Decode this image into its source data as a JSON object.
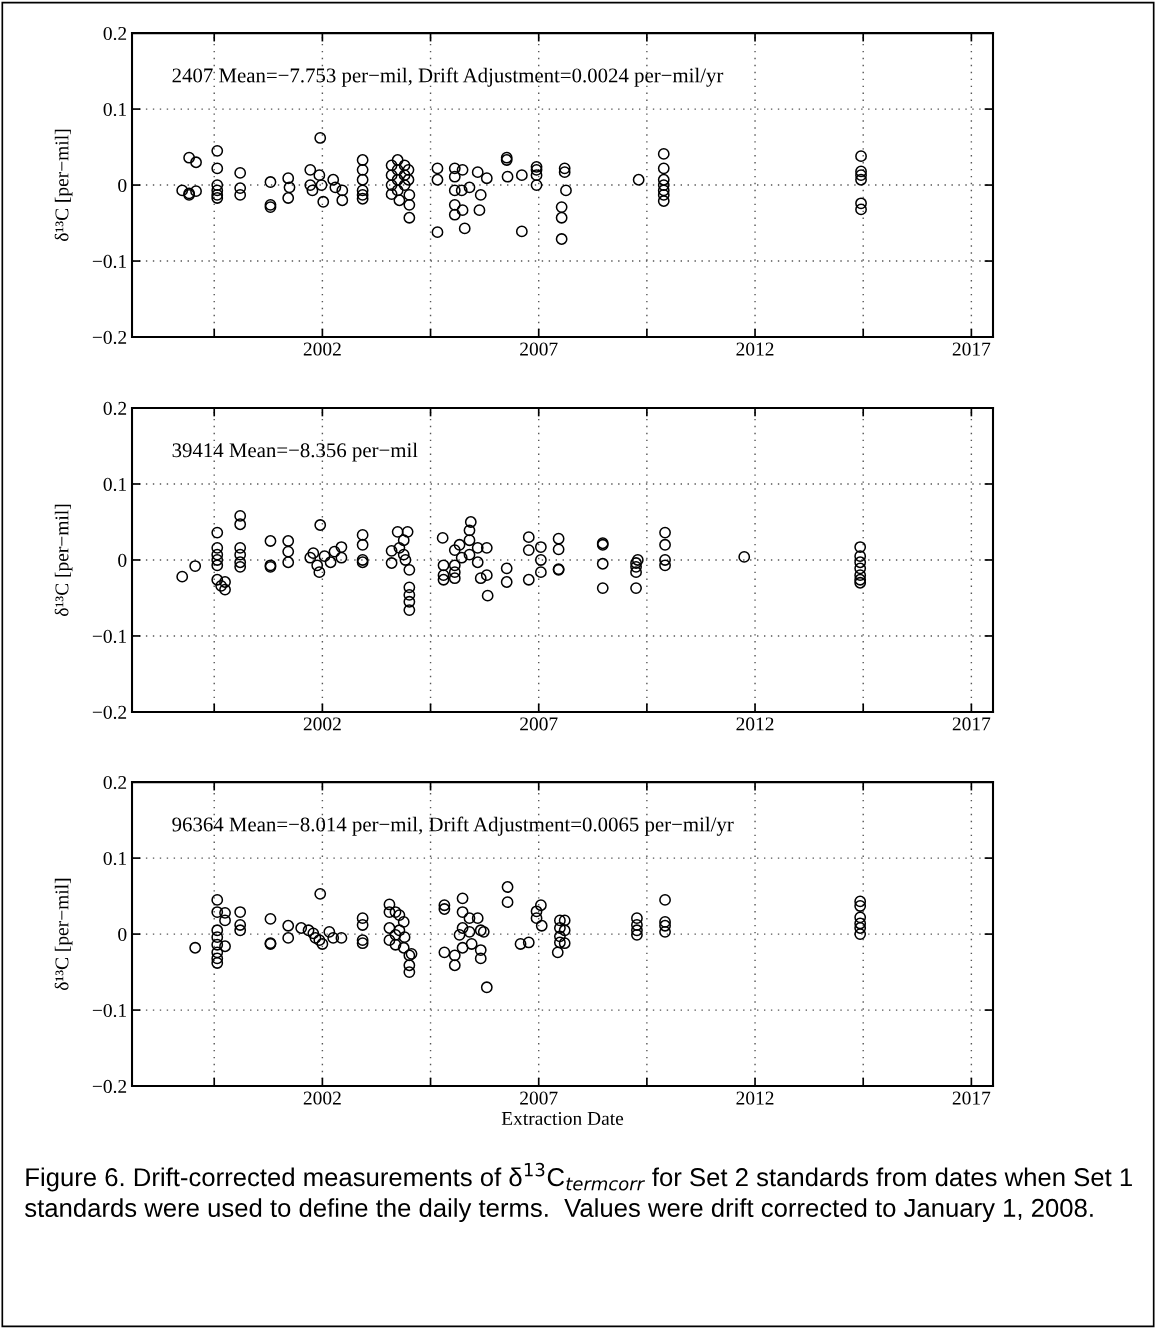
{
  "chart_data": [
    {
      "type": "scatter",
      "ylabel": "δ¹³C [per−mil]",
      "annotations": [
        "2407 Mean=−7.753 per−mil, Drift Adjustment=0.0024 per−mil/yr"
      ],
      "color": "#000000",
      "marker": "circle",
      "grid": true,
      "xlim": [
        1997.6,
        2017.5
      ],
      "ylim": [
        -0.2,
        0.2
      ],
      "xticks": [
        {
          "value": 1999.5,
          "label": null
        },
        2002,
        {
          "value": 2004.5,
          "label": null
        },
        2007,
        {
          "value": 2009.5,
          "label": null
        },
        2012,
        {
          "value": 2014.5,
          "label": null
        },
        2017
      ],
      "yticks": [
        -0.2,
        -0.1,
        0,
        0.1,
        0.2
      ],
      "x": [
        1998.76,
        1998.92,
        1999.08,
        1998.92,
        1999.08,
        1998.92,
        1999.57,
        1999.57,
        1999.57,
        1999.57,
        1999.57,
        1999.57,
        2000.1,
        2000.1,
        2000.1,
        2000.8,
        2000.8,
        2000.8,
        2001.21,
        2001.21,
        2001.24,
        2001.72,
        2001.72,
        2001.77,
        2001.95,
        2001.93,
        2001.98,
        2002.02,
        2002.25,
        2002.3,
        2002.46,
        2002.46,
        2002.93,
        2002.93,
        2002.93,
        2002.93,
        2002.93,
        2002.93,
        2003.6,
        2003.6,
        2003.6,
        2003.6,
        2003.74,
        2003.74,
        2003.74,
        2003.74,
        2003.78,
        2003.9,
        2003.9,
        2003.9,
        2003.99,
        2003.99,
        2004.01,
        2004.01,
        2004.01,
        2004.66,
        2004.66,
        2004.66,
        2005.06,
        2005.06,
        2005.06,
        2005.06,
        2005.06,
        2005.24,
        2005.22,
        2005.24,
        2005.29,
        2005.4,
        2005.59,
        2005.66,
        2005.8,
        2005.63,
        2006.26,
        2006.26,
        2006.28,
        2006.61,
        2006.61,
        2006.95,
        2006.95,
        2006.95,
        2006.95,
        2007.6,
        2007.6,
        2007.63,
        2007.53,
        2007.53,
        2007.53,
        2009.31,
        2009.89,
        2009.89,
        2009.89,
        2009.89,
        2009.89,
        2009.89,
        2009.89,
        2014.45,
        2014.45,
        2014.45,
        2014.45,
        2014.45,
        2014.45
      ],
      "values": [
        -0.007,
        0.036,
        0.03,
        -0.011,
        -0.008,
        -0.013,
        0.045,
        0.022,
        0,
        -0.007,
        -0.013,
        -0.017,
        0.016,
        -0.004,
        -0.013,
        0.004,
        -0.026,
        -0.029,
        0.009,
        -0.017,
        -0.003,
        0.02,
        0,
        -0.007,
        0.062,
        0.013,
        0,
        -0.022,
        0.007,
        -0.003,
        -0.007,
        -0.02,
        0.033,
        0.02,
        0.007,
        -0.007,
        -0.013,
        -0.018,
        0.026,
        0.013,
        0,
        -0.012,
        0.033,
        0.02,
        0.007,
        -0.007,
        -0.02,
        0.026,
        0.013,
        0,
        0.02,
        0.007,
        -0.013,
        -0.026,
        -0.043,
        0.022,
        0.007,
        -0.062,
        0.022,
        0.011,
        -0.007,
        -0.026,
        -0.039,
        0.02,
        -0.007,
        -0.033,
        -0.057,
        -0.003,
        0.017,
        -0.013,
        0.009,
        -0.033,
        0.036,
        0.033,
        0.011,
        0.013,
        -0.061,
        0.024,
        0.02,
        0.013,
        0,
        0.022,
        0.017,
        -0.007,
        -0.029,
        -0.043,
        -0.071,
        0.007,
        0.041,
        0.022,
        0.007,
        0,
        -0.007,
        -0.013,
        -0.021,
        0.038,
        0.018,
        0.013,
        0.007,
        -0.024,
        -0.032
      ]
    },
    {
      "type": "scatter",
      "ylabel": "δ¹³C [per−mil]",
      "annotations": [
        "39414 Mean=−8.356 per−mil"
      ],
      "color": "#000000",
      "marker": "circle",
      "grid": true,
      "xlim": [
        1997.6,
        2017.5
      ],
      "ylim": [
        -0.2,
        0.2
      ],
      "xticks": [
        {
          "value": 1999.5,
          "label": null
        },
        2002,
        {
          "value": 2004.5,
          "label": null
        },
        2007,
        {
          "value": 2009.5,
          "label": null
        },
        2012,
        {
          "value": 2014.5,
          "label": null
        },
        2017
      ],
      "yticks": [
        -0.2,
        -0.1,
        0,
        0.1,
        0.2
      ],
      "x": [
        1998.76,
        1999.06,
        1999.57,
        1999.57,
        1999.57,
        1999.57,
        1999.57,
        1999.57,
        1999.66,
        1999.75,
        1999.75,
        2000.1,
        2000.1,
        2000.1,
        2000.1,
        2000.1,
        2000.1,
        2000.8,
        2000.8,
        2000.8,
        2001.21,
        2001.21,
        2001.21,
        2001.72,
        2001.79,
        2001.95,
        2001.88,
        2001.93,
        2002.05,
        2002.19,
        2002.28,
        2002.44,
        2002.44,
        2002.93,
        2002.93,
        2002.93,
        2002.93,
        2003.6,
        2003.6,
        2003.74,
        2003.78,
        2003.88,
        2003.88,
        2003.92,
        2003.97,
        2004.01,
        2004.01,
        2004.01,
        2004.01,
        2004.01,
        2004.78,
        2004.8,
        2004.8,
        2004.8,
        2005.06,
        2005.06,
        2005.06,
        2005.06,
        2005.17,
        2005.22,
        2005.4,
        2005.4,
        2005.4,
        2005.43,
        2005.59,
        2005.59,
        2005.66,
        2005.8,
        2005.8,
        2005.82,
        2006.26,
        2006.26,
        2006.77,
        2006.77,
        2006.77,
        2007.05,
        2007.05,
        2007.05,
        2007.46,
        2007.46,
        2007.46,
        2007.46,
        2008.48,
        2008.48,
        2008.48,
        2008.48,
        2009.25,
        2009.25,
        2009.29,
        2009.25,
        2009.25,
        2009.92,
        2009.92,
        2009.92,
        2009.92,
        2011.75,
        2014.43,
        2014.43,
        2014.43,
        2014.43,
        2014.43,
        2014.43,
        2014.43
      ],
      "values": [
        -0.022,
        -0.008,
        0.036,
        0.016,
        0.007,
        0,
        -0.007,
        -0.026,
        -0.034,
        -0.029,
        -0.039,
        0.058,
        0.047,
        0.016,
        0.007,
        -0.003,
        -0.009,
        0.025,
        -0.007,
        -0.009,
        0.025,
        0.011,
        -0.003,
        0.003,
        0.009,
        0.046,
        -0.007,
        -0.016,
        0.005,
        -0.003,
        0.011,
        0.017,
        0.003,
        0.033,
        0.02,
        0,
        -0.003,
        0.012,
        -0.004,
        0.037,
        0.016,
        0.026,
        0.007,
        0,
        0.037,
        -0.013,
        -0.036,
        -0.046,
        -0.055,
        -0.066,
        0.029,
        -0.007,
        -0.02,
        -0.026,
        0.013,
        -0.007,
        -0.016,
        -0.024,
        0.02,
        0.003,
        0.039,
        0.007,
        0.026,
        0.05,
        0.016,
        -0.003,
        -0.024,
        0.016,
        -0.02,
        -0.047,
        -0.011,
        -0.029,
        0.03,
        0.013,
        -0.026,
        0.017,
        0,
        -0.016,
        0.028,
        0.014,
        -0.012,
        -0.013,
        0.022,
        0.02,
        -0.005,
        -0.037,
        -0.004,
        -0.009,
        0,
        -0.016,
        -0.037,
        0.036,
        0.02,
        0,
        -0.007,
        0.004,
        0.017,
        0.005,
        -0.003,
        -0.011,
        -0.02,
        -0.026,
        -0.03
      ]
    },
    {
      "type": "scatter",
      "ylabel": "δ¹³C [per−mil]",
      "xlabel": "Extraction Date",
      "annotations": [
        "96364 Mean=−8.014 per−mil, Drift Adjustment=0.0065 per−mil/yr",
        "Figure 6. Drift-corrected measurements of δ$^{13}$C$_{termcorr}$ for Set 2 standards from dates when Set 1 standards were used to define the daily terms.  Values were drift corrected to January 1, 2008."
      ],
      "color": "#000000",
      "marker": "circle",
      "grid": true,
      "xlim": [
        1997.6,
        2017.5
      ],
      "ylim": [
        -0.2,
        0.2
      ],
      "xticks": [
        {
          "value": 1999.5,
          "label": null
        },
        2002,
        {
          "value": 2004.5,
          "label": null
        },
        2007,
        {
          "value": 2009.5,
          "label": null
        },
        2012,
        {
          "value": 2014.5,
          "label": null
        },
        2017
      ],
      "yticks": [
        -0.2,
        -0.1,
        0,
        0.1,
        0.2
      ],
      "x": [
        1999.06,
        1999.57,
        1999.57,
        1999.57,
        1999.57,
        1999.57,
        1999.57,
        1999.57,
        1999.57,
        1999.75,
        1999.75,
        1999.75,
        2000.1,
        2000.1,
        2000.1,
        2000.8,
        2000.8,
        2000.8,
        2001.21,
        2001.21,
        2001.51,
        2001.68,
        2001.79,
        2001.84,
        2001.95,
        2001.93,
        2002.0,
        2002.16,
        2002.25,
        2002.44,
        2002.93,
        2002.93,
        2002.93,
        2002.93,
        2003.55,
        2003.55,
        2003.55,
        2003.55,
        2003.69,
        2003.69,
        2003.69,
        2003.78,
        2003.78,
        2003.88,
        2003.88,
        2003.9,
        2004.01,
        2004.01,
        2004.01,
        2004.06,
        2004.82,
        2004.82,
        2004.82,
        2005.06,
        2005.06,
        2005.24,
        2005.24,
        2005.24,
        2005.24,
        2005.17,
        2005.4,
        2005.4,
        2005.45,
        2005.59,
        2005.66,
        2005.66,
        2005.66,
        2005.8,
        2005.73,
        2006.28,
        2006.28,
        2006.58,
        2006.77,
        2006.95,
        2006.95,
        2007.05,
        2007.07,
        2007.49,
        2007.49,
        2007.49,
        2007.49,
        2007.6,
        2007.6,
        2007.6,
        2007.44,
        2009.27,
        2009.27,
        2009.27,
        2009.27,
        2009.92,
        2009.92,
        2009.92,
        2009.92,
        2014.43,
        2014.43,
        2014.43,
        2014.43,
        2014.43,
        2014.43
      ],
      "values": [
        -0.018,
        0.045,
        0.029,
        0.005,
        -0.004,
        -0.014,
        -0.024,
        -0.032,
        -0.038,
        0.028,
        0.018,
        -0.016,
        0.029,
        0.012,
        0.005,
        0.02,
        -0.012,
        -0.013,
        0.011,
        -0.005,
        0.008,
        0.005,
        0.001,
        -0.005,
        0.053,
        -0.008,
        -0.013,
        0.003,
        -0.005,
        -0.005,
        0.021,
        0.012,
        -0.008,
        -0.012,
        0.039,
        0.029,
        0.008,
        -0.008,
        0.029,
        -0.001,
        -0.014,
        0.025,
        0.005,
        0.016,
        -0.018,
        -0.004,
        -0.028,
        -0.041,
        -0.05,
        -0.026,
        0.038,
        0.033,
        -0.024,
        -0.028,
        -0.041,
        0.047,
        0.029,
        0.008,
        -0.018,
        -0.001,
        0.021,
        0.003,
        -0.013,
        0.021,
        0.005,
        -0.021,
        -0.032,
        -0.07,
        0.003,
        0.062,
        0.042,
        -0.013,
        -0.011,
        0.03,
        0.021,
        0.038,
        0.011,
        0.018,
        0.008,
        -0.003,
        -0.011,
        0.018,
        0.005,
        -0.012,
        -0.024,
        0.021,
        0.012,
        0.005,
        -0.001,
        0.045,
        0.016,
        0.011,
        0.003,
        0.043,
        0.037,
        0.022,
        0.014,
        0.008,
        0
      ]
    }
  ]
}
